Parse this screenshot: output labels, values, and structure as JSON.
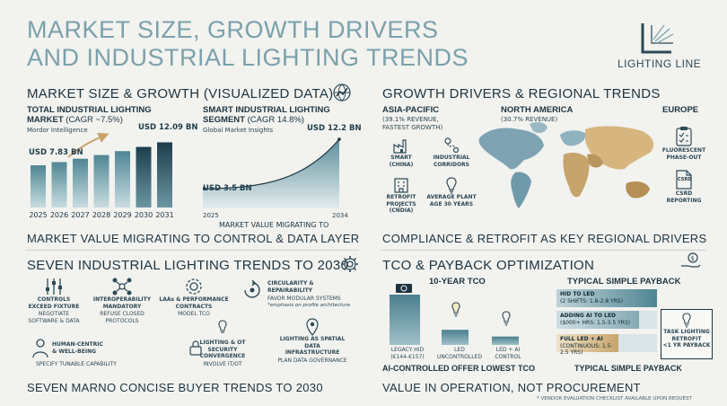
{
  "title": {
    "line1": "MARKET SIZE, GROWTH DRIVERS",
    "line2": "AND INDUSTRIAL LIGHTING TRENDS"
  },
  "brand": {
    "name": "LIGHTING LINE"
  },
  "market": {
    "heading": "MARKET SIZE & GROWTH (VISUALIZED DATA)",
    "caption": "MARKET VALUE MIGRATING TO CONTROL & DATA LAYER",
    "total": {
      "title": "TOTAL INDUSTRIAL LIGHTING",
      "title2": "MARKET",
      "cagr": "(CAGR ~7.5%)",
      "source": "Mordor Intelligence",
      "start_label": "USD 7.83 BN",
      "end_label": "USD 12.09 BN"
    },
    "smart": {
      "title": "SMART INDUSTRIAL LIGHTING",
      "title2": "SEGMENT",
      "cagr": "(CAGR 14.8%)",
      "source": "Global Market Insights",
      "start_label": "USD 3.5 BN",
      "end_label": "USD 12.2 BN",
      "x_start": "2025",
      "x_end": "2034",
      "sub": "MARKET VALUE MIGRATING TO"
    }
  },
  "chart_data": [
    {
      "type": "bar",
      "categories": [
        "2025",
        "2026",
        "2027",
        "2028",
        "2029",
        "2030",
        "2031"
      ],
      "values": [
        7.83,
        8.42,
        9.05,
        9.73,
        10.46,
        11.24,
        12.09
      ],
      "title": "TOTAL INDUSTRIAL LIGHTING MARKET (CAGR ~7.5%)",
      "ylim": [
        0,
        13
      ],
      "grid": false
    },
    {
      "type": "area",
      "x": [
        "2025",
        "2034"
      ],
      "values": [
        3.5,
        12.2
      ],
      "title": "SMART INDUSTRIAL LIGHTING SEGMENT (CAGR 14.8%)",
      "ylim": [
        0,
        13
      ],
      "grid": false
    }
  ],
  "growth": {
    "heading": "GROWTH DRIVERS & REGIONAL TRENDS",
    "caption": "COMPLIANCE & RETROFIT AS KEY REGIONAL DRIVERS",
    "apac": {
      "name": "ASIA-PACIFIC",
      "detail1": "(39.1% REVENUE,",
      "detail2": "FASTEST GROWTH)"
    },
    "na": {
      "name": "NORTH AMERICA",
      "detail": "(30.7% REVENUE)"
    },
    "eu": {
      "name": "EUROPE"
    },
    "drivers": [
      {
        "icon": "factory-icon",
        "l1": "SMART",
        "l2": "(CHINA)"
      },
      {
        "icon": "route-icon",
        "l1": "INDUSTRIAL",
        "l2": "CORRIDORS"
      },
      {
        "icon": "building-icon",
        "l1": "RETROFIT",
        "l2": "PROJECTS",
        "l3": "(CNDIA)"
      },
      {
        "icon": "bulb-icon",
        "l1": "AVERAGE PLANT",
        "l2": "AGE 30 YEARS"
      },
      {
        "icon": "checklist-icon",
        "l1": "FLUORESCENT",
        "l2": "PHASE-OUT"
      },
      {
        "icon": "document-icon",
        "l1": "CSRD",
        "l2": "REPORTING",
        "badge": "CSRD"
      }
    ]
  },
  "trends": {
    "heading": "SEVEN INDUSTRIAL LIGHTING TRENDS TO 2030",
    "caption": "SEVEN MARNO CONCISE BUYER TRENDS TO 2030",
    "items": [
      {
        "t1": "CONTROLS",
        "t2": "EXCEED FIXTURE",
        "d1": "NEGOTIATE",
        "d2": "SOFTWARE & DATA"
      },
      {
        "t1": "INTEROPERABILITY",
        "t2": "MANDATORY",
        "d1": "REFUSE CLOSED",
        "d2": "PROTOCOLS"
      },
      {
        "t1": "LAAs & PERFORMANCE",
        "t2": "CONTRACTS",
        "d1": "MODEL TCO",
        "d2": ""
      },
      {
        "t1": "CIRCULARITY &",
        "t2": "REPAIRABILITY",
        "d1": "FAVOR MODULAR SYSTEMS",
        "d2": "*emphasis on profile architecture"
      },
      {
        "t1": "HUMAN-CENTRIC",
        "t2": "& WELL-BEING",
        "d1": "SPECIFY TUNABLE CAPABILITY",
        "d2": ""
      },
      {
        "t1": "LIGHTING & OT",
        "t2": "SECURITY",
        "t3": "CONVERGENCE",
        "d1": "INVOLVE IT/OT",
        "d2": ""
      },
      {
        "t1": "LIGHTING AS SPATIAL",
        "t2": "DATA",
        "t3": "INFRASTRUCTURE",
        "d1": "PLAN DATA GOVERNANCE",
        "d2": ""
      }
    ]
  },
  "tco": {
    "heading": "TCO & PAYBACK OPTIMIZATION",
    "caption": "VALUE IN OPERATION, NOT PROCUREMENT",
    "footnote": "* VENDOR EVALUATION CHECKLIST AVAILABLE UPON REQUEST",
    "ten_year_title": "10-YEAR TCO",
    "ten_year_caption": "AI-CONTROLLED OFFER LOWEST TCO",
    "bars": [
      {
        "l1": "LEGACY HID",
        "l2": "(€144-€157)",
        "value": 150
      },
      {
        "l1": "LED",
        "l2": "UNCONTROLLED",
        "value": 45
      },
      {
        "l1": "LED + AI",
        "l2": "CONTROL",
        "value": 25
      }
    ],
    "payback_title": "TYPICAL SIMPLE PAYBACK",
    "payback_caption": "TYPICAL SIMPLE PAYBACK",
    "payback": [
      {
        "l1": "HID TO LED",
        "l2": "(2 SHIFTS: 1.8-2.8 YRS)",
        "fill": 1.0
      },
      {
        "l1": "ADDING AI TO LED",
        "l2": "($000+ HRS: 1.5-3.5 YRS)",
        "fill": 0.82
      },
      {
        "l1": "FULL LED + AI",
        "l2": "(CONTINUOUS: 1.5-2.5 YRS)",
        "fill": 0.62
      }
    ],
    "task": {
      "l1": "TASK LIGHTING",
      "l2": "RETROFIT",
      "l3": "<1 YR PAYBACK"
    }
  }
}
